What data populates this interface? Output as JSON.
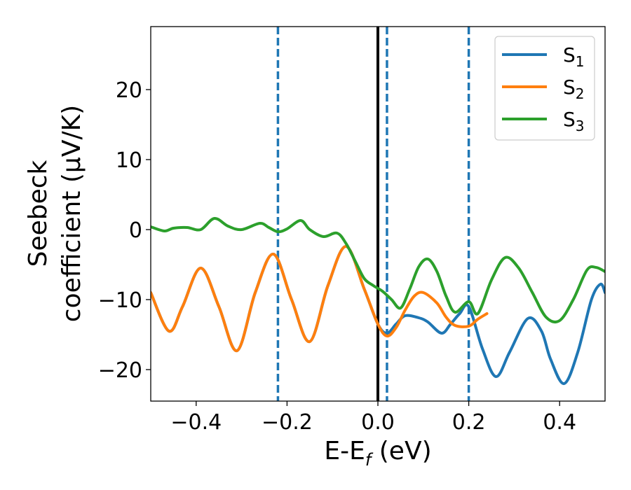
{
  "chart_data": {
    "type": "line",
    "xlabel": "E-E",
    "xlabel_sub": "f",
    "xlabel_unit": " (eV)",
    "ylabel_line1": "Seebeck",
    "ylabel_line2": "coefficient  (μV/K)",
    "xlim": [
      -0.5,
      0.5
    ],
    "ylim": [
      -24.5,
      29
    ],
    "x_ticks": [
      -0.4,
      -0.2,
      0.0,
      0.2,
      0.4
    ],
    "x_tick_labels": [
      "−0.4",
      "−0.2",
      "0.0",
      "0.2",
      "0.4"
    ],
    "y_ticks": [
      -20,
      -10,
      0,
      10,
      20
    ],
    "y_tick_labels": [
      "−20",
      "−10",
      "0",
      "10",
      "20"
    ],
    "grid": false,
    "legend_position": "top-right",
    "vertical_lines": [
      {
        "x": -0.22,
        "style": "dashed",
        "color": "#1f77b4"
      },
      {
        "x": 0.0,
        "style": "solid",
        "color": "#000000"
      },
      {
        "x": 0.02,
        "style": "dashed",
        "color": "#1f77b4"
      },
      {
        "x": 0.2,
        "style": "dashed",
        "color": "#1f77b4"
      }
    ],
    "series": [
      {
        "name": "S",
        "name_sub": "1",
        "color": "#1f77b4",
        "x": [
          -0.5,
          -0.46,
          -0.43,
          -0.39,
          -0.35,
          -0.31,
          -0.27,
          -0.23,
          -0.19,
          -0.15,
          -0.11,
          -0.07,
          -0.03,
          0.0,
          0.02,
          0.04,
          0.06,
          0.09,
          0.11,
          0.14,
          0.16,
          0.18,
          0.2,
          0.23,
          0.26,
          0.29,
          0.33,
          0.36,
          0.38,
          0.41,
          0.44,
          0.47,
          0.49,
          0.5
        ],
        "y": [
          -9.0,
          -14.5,
          -11.0,
          -5.5,
          -11.0,
          -17.3,
          -9.0,
          -3.5,
          -10.0,
          -16.0,
          -8.0,
          -2.4,
          -8.5,
          -13.5,
          -14.8,
          -13.5,
          -12.3,
          -12.6,
          -13.2,
          -14.8,
          -13.5,
          -12.0,
          -11.0,
          -17.0,
          -21.0,
          -17.5,
          -12.7,
          -14.5,
          -18.5,
          -22.0,
          -17.5,
          -10.0,
          -7.8,
          -9.0
        ]
      },
      {
        "name": "S",
        "name_sub": "2",
        "color": "#ff7f0e",
        "x": [
          -0.5,
          -0.46,
          -0.43,
          -0.39,
          -0.35,
          -0.31,
          -0.27,
          -0.23,
          -0.19,
          -0.15,
          -0.11,
          -0.07,
          -0.03,
          0.0,
          0.02,
          0.04,
          0.06,
          0.08,
          0.1,
          0.13,
          0.15,
          0.17,
          0.2,
          0.22,
          0.24
        ],
        "y": [
          -9.0,
          -14.5,
          -11.0,
          -5.5,
          -11.0,
          -17.3,
          -9.0,
          -3.5,
          -10.0,
          -16.0,
          -8.0,
          -2.4,
          -8.5,
          -13.5,
          -15.2,
          -14.0,
          -11.5,
          -9.5,
          -9.0,
          -10.5,
          -12.5,
          -13.7,
          -13.8,
          -12.8,
          -12.0
        ]
      },
      {
        "name": "S",
        "name_sub": "3",
        "color": "#2ca02c",
        "x": [
          -0.5,
          -0.47,
          -0.45,
          -0.42,
          -0.39,
          -0.36,
          -0.33,
          -0.3,
          -0.26,
          -0.24,
          -0.22,
          -0.2,
          -0.17,
          -0.15,
          -0.12,
          -0.09,
          -0.07,
          -0.05,
          -0.03,
          -0.01,
          0.01,
          0.03,
          0.05,
          0.07,
          0.09,
          0.11,
          0.13,
          0.15,
          0.17,
          0.2,
          0.22,
          0.25,
          0.28,
          0.31,
          0.34,
          0.37,
          0.4,
          0.43,
          0.46,
          0.48,
          0.5
        ],
        "y": [
          0.4,
          -0.2,
          0.2,
          0.3,
          0.0,
          1.6,
          0.5,
          0.0,
          0.9,
          0.3,
          -0.3,
          0.1,
          1.3,
          0.0,
          -1.0,
          -0.5,
          -2.0,
          -4.5,
          -7.0,
          -8.0,
          -8.8,
          -10.0,
          -11.2,
          -8.5,
          -5.3,
          -4.2,
          -6.0,
          -9.5,
          -11.8,
          -10.3,
          -12.0,
          -7.2,
          -4.0,
          -5.5,
          -9.0,
          -12.5,
          -13.0,
          -10.0,
          -5.8,
          -5.4,
          -6.0
        ]
      }
    ]
  }
}
